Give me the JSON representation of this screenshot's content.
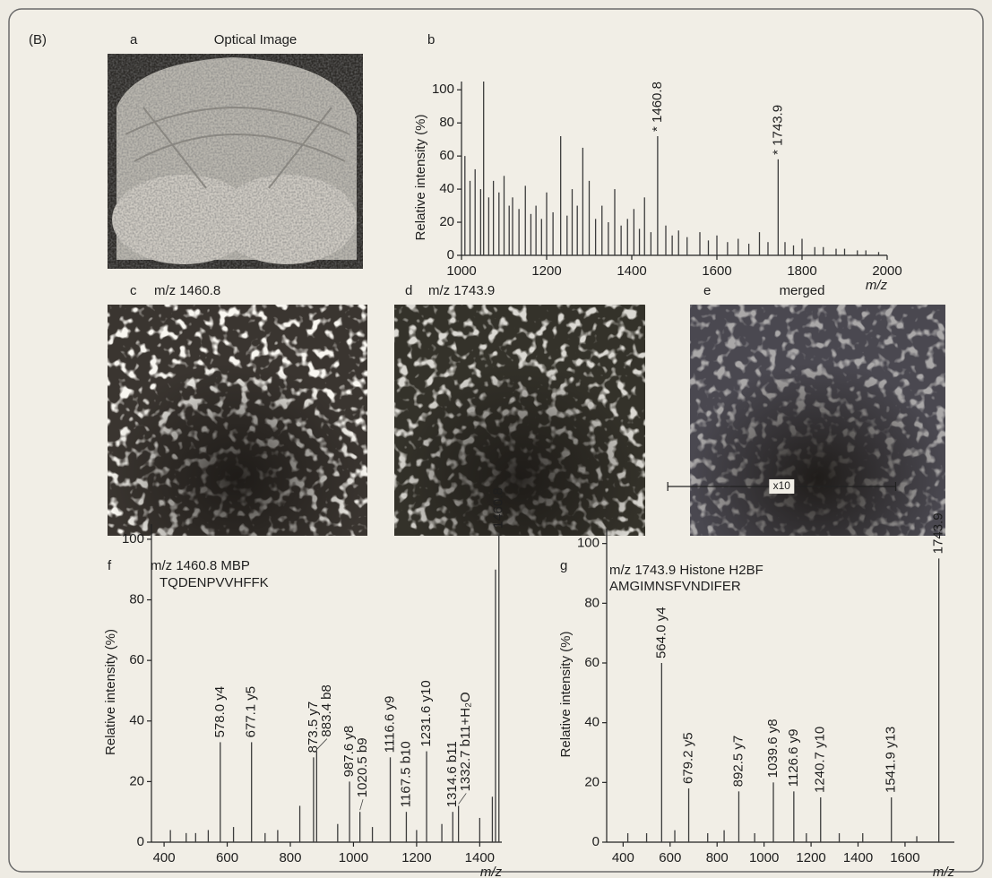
{
  "figure_label": "(B)",
  "panels": [
    {
      "letter": "a",
      "title": "Optical Image"
    },
    {
      "letter": "c",
      "title": "m/z 1460.8"
    },
    {
      "letter": "d",
      "title": "m/z 1743.9"
    },
    {
      "letter": "e",
      "title": "merged"
    }
  ],
  "chart_data": [
    {
      "type": "spectrum",
      "panel": "b",
      "ylabel": "Relative intensity (%)",
      "xlabel": "m/z",
      "xlim": [
        1000,
        2000
      ],
      "xticks": [
        1000,
        1200,
        1400,
        1600,
        1800,
        2000
      ],
      "ylim": [
        0,
        105
      ],
      "yticks": [
        0,
        20,
        40,
        60,
        80,
        100
      ],
      "x": [
        1008,
        1020,
        1032,
        1045,
        1052,
        1064,
        1075,
        1088,
        1100,
        1112,
        1120,
        1135,
        1150,
        1163,
        1175,
        1188,
        1200,
        1215,
        1233,
        1248,
        1260,
        1272,
        1285,
        1300,
        1315,
        1330,
        1345,
        1360,
        1375,
        1390,
        1405,
        1418,
        1430,
        1445,
        1460.8,
        1480,
        1495,
        1510,
        1530,
        1560,
        1580,
        1600,
        1625,
        1650,
        1675,
        1700,
        1720,
        1743.9,
        1760,
        1780,
        1800,
        1830,
        1850,
        1880,
        1900,
        1930,
        1950,
        1980
      ],
      "values": [
        60,
        45,
        52,
        40,
        105,
        35,
        45,
        38,
        48,
        30,
        35,
        28,
        42,
        25,
        30,
        22,
        38,
        26,
        72,
        24,
        40,
        30,
        65,
        45,
        22,
        30,
        20,
        40,
        18,
        22,
        28,
        16,
        35,
        14,
        72,
        18,
        12,
        15,
        11,
        14,
        9,
        12,
        8,
        10,
        7,
        14,
        8,
        58,
        8,
        6,
        10,
        5,
        5,
        4,
        4,
        3,
        3,
        2
      ],
      "labels": [
        null,
        null,
        null,
        null,
        null,
        null,
        null,
        null,
        null,
        null,
        null,
        null,
        null,
        null,
        null,
        null,
        null,
        null,
        null,
        null,
        null,
        null,
        null,
        null,
        null,
        null,
        null,
        null,
        null,
        null,
        null,
        null,
        null,
        null,
        "* 1460.8",
        null,
        null,
        null,
        null,
        null,
        null,
        null,
        null,
        null,
        null,
        null,
        null,
        "* 1743.9",
        null,
        null,
        null,
        null,
        null,
        null,
        null,
        null,
        null,
        null
      ]
    },
    {
      "type": "spectrum",
      "panel": "f",
      "title": "m/z 1460.8 MBP",
      "subtitle": "TQDENPVVHFFK",
      "ylabel": "Relative intensity (%)",
      "xlabel": "m/z",
      "xlim": [
        360,
        1470
      ],
      "xticks": [
        400,
        600,
        800,
        1000,
        1200,
        1400
      ],
      "ylim": [
        0,
        105
      ],
      "yticks": [
        0,
        20,
        40,
        60,
        80,
        100
      ],
      "x": [
        420,
        470,
        500,
        540,
        578.0,
        620,
        677.1,
        720,
        760,
        830,
        873.5,
        883.4,
        950,
        987.6,
        1020.5,
        1060,
        1116.6,
        1167.5,
        1200,
        1231.6,
        1280,
        1314.6,
        1332.7,
        1400,
        1440,
        1450,
        1460.8
      ],
      "values": [
        4,
        3,
        3,
        4,
        33,
        5,
        33,
        3,
        4,
        12,
        28,
        30,
        6,
        20,
        10,
        5,
        28,
        10,
        4,
        30,
        6,
        10,
        12,
        8,
        15,
        90,
        102
      ],
      "labels": [
        null,
        null,
        null,
        null,
        "578.0  y4",
        null,
        "677.1  y5",
        null,
        null,
        null,
        "873.5  y7",
        "883.4  b8",
        null,
        "987.6  y8",
        "1020.5  b9",
        null,
        "1116.6  y9",
        "1167.5  b10",
        null,
        "1231.6  y10",
        null,
        "1314.6  b11",
        "1332.7  b11+H₂O",
        null,
        null,
        null,
        "1460.8"
      ]
    },
    {
      "type": "spectrum",
      "panel": "g",
      "title": "m/z 1743.9 Histone H2BF",
      "subtitle": "AMGIMNSFVNDIFER",
      "ylabel": "Relative intensity (%)",
      "xlabel": "m/z",
      "xlim": [
        330,
        1810
      ],
      "xticks": [
        400,
        600,
        800,
        1000,
        1200,
        1400,
        1600
      ],
      "ylim": [
        0,
        105
      ],
      "yticks": [
        0,
        20,
        40,
        60,
        80,
        100
      ],
      "zoom": {
        "label": "x10",
        "range": [
          590,
          1560
        ]
      },
      "x": [
        420,
        500,
        564.0,
        620,
        679.2,
        760,
        830,
        892.5,
        960,
        1039.6,
        1126.6,
        1180,
        1240.7,
        1320,
        1420,
        1541.9,
        1650,
        1743.9
      ],
      "values": [
        3,
        3,
        60,
        4,
        18,
        3,
        4,
        17,
        3,
        20,
        17,
        3,
        15,
        3,
        3,
        15,
        2,
        95
      ],
      "labels": [
        null,
        null,
        "564.0  y4",
        null,
        "679.2  y5",
        null,
        null,
        "892.5  y7",
        null,
        "1039.6  y8",
        "1126.6  y9",
        null,
        "1240.7  y10",
        null,
        null,
        "1541.9  y13",
        null,
        "1743.9"
      ]
    }
  ]
}
